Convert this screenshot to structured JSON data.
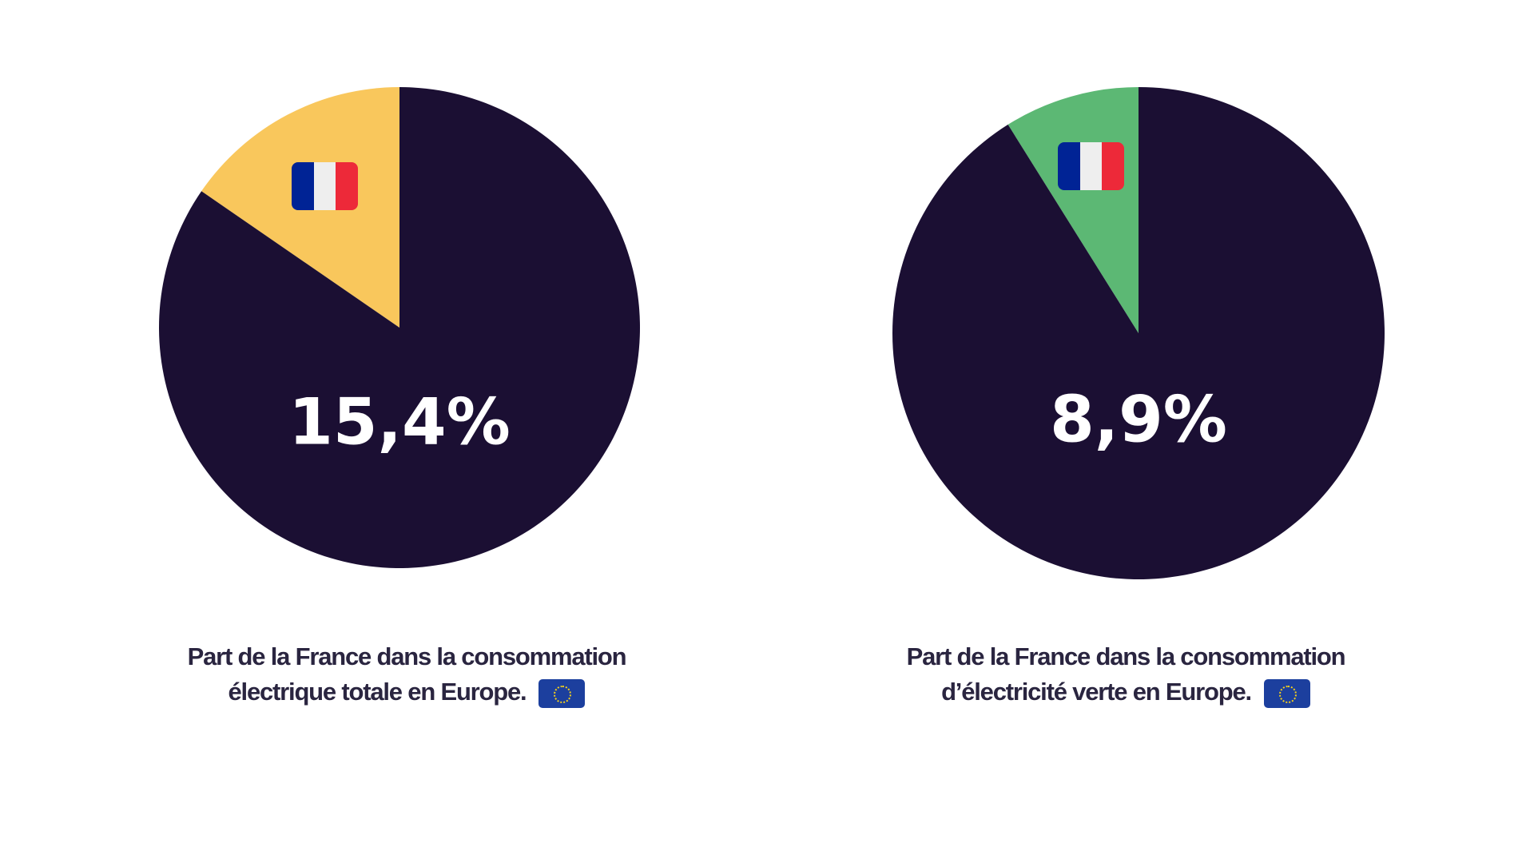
{
  "chart_data": [
    {
      "type": "pie",
      "slices": [
        {
          "label": "France",
          "value": 15.4,
          "color": "#f9c75c"
        },
        {
          "label": "",
          "value": 84.6,
          "color": "#1b0f33"
        }
      ],
      "value_label": "15,4%",
      "flag_icon": "france-flag-icon",
      "caption": {
        "line1": "Part de la France dans la consommation",
        "highlight": "électrique totale",
        "rest": "en Europe.",
        "icon": "eu-flag-icon"
      }
    },
    {
      "type": "pie",
      "slices": [
        {
          "label": "France",
          "value": 8.9,
          "color": "#5cb874"
        },
        {
          "label": "",
          "value": 91.1,
          "color": "#1b0f33"
        }
      ],
      "value_label": "8,9%",
      "flag_icon": "france-flag-icon",
      "caption": {
        "line1": "Part de la France dans la consommation",
        "highlight": "d’électricité verte",
        "rest": "en Europe.",
        "icon": "eu-flag-icon"
      }
    }
  ],
  "colors": {
    "flag_blue": "#002395",
    "flag_white": "#eeeeee",
    "flag_red": "#ed2939"
  }
}
